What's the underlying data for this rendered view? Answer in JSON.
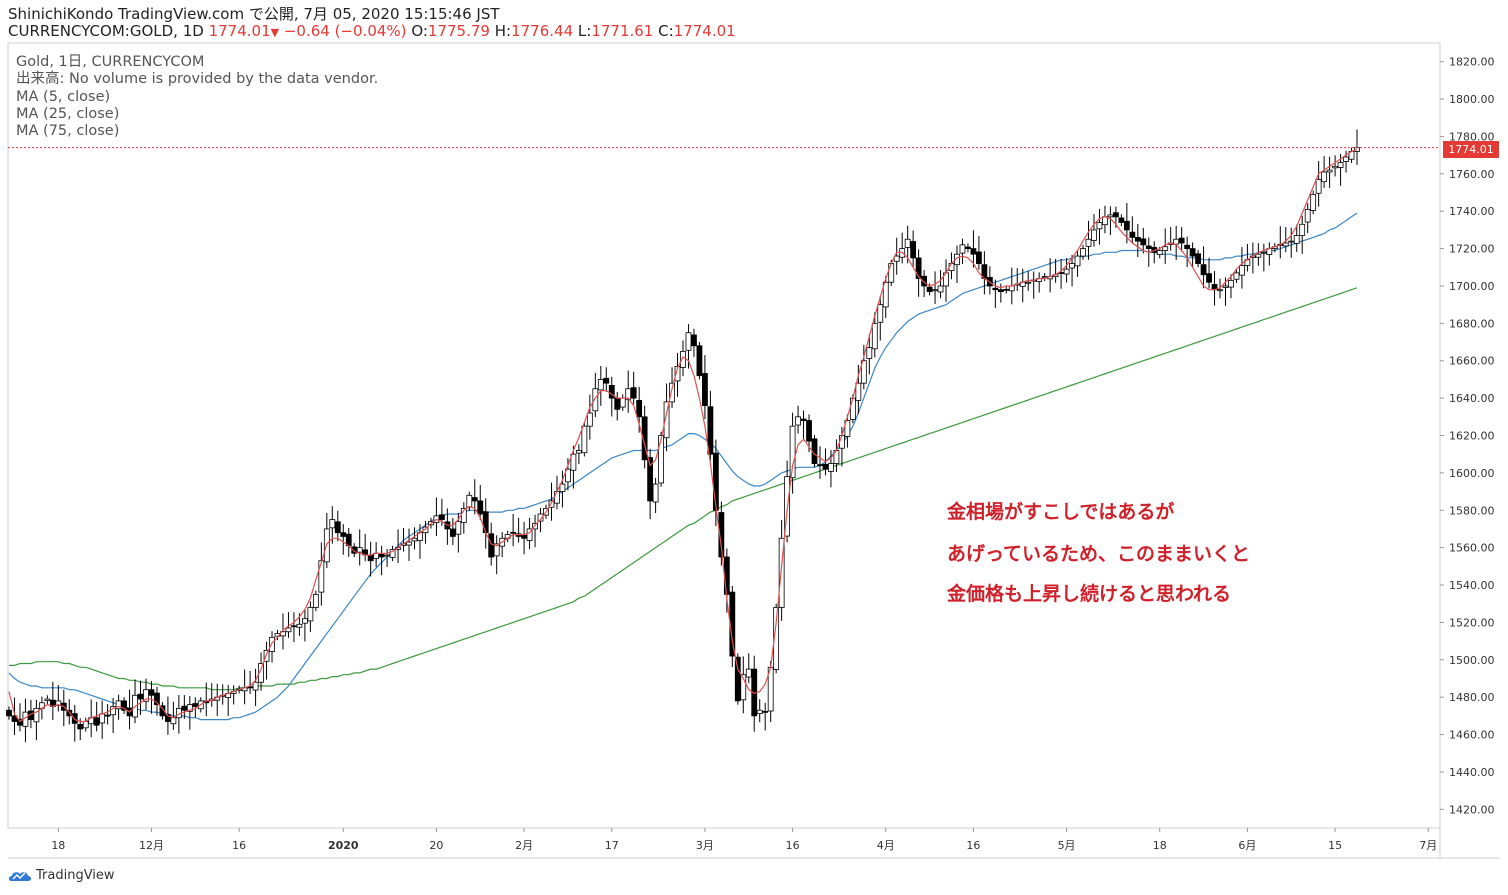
{
  "header": {
    "publisher_line": "ShinichiKondo TradingView.com で公開, 7月 05, 2020 15:15:46 JST",
    "symbol": "CURRENCYCOM:GOLD, 1D",
    "last": "1774.01",
    "change_arrow": "▼",
    "change": "−0.64 (−0.04%)",
    "o_label": "O:",
    "o_value": "1775.79",
    "h_label": "H:",
    "h_value": "1776.44",
    "l_label": "L:",
    "l_value": "1771.61",
    "c_label": "C:",
    "c_value": "1774.01"
  },
  "legend": {
    "title": "Gold, 1日, CURRENCYCOM",
    "volume": "出来高: No volume is provided by the data vendor.",
    "ma5": "MA (5, close)",
    "ma25": "MA (25, close)",
    "ma75": "MA (75, close)"
  },
  "annotation": {
    "line1": "金相場がすこしではあるが",
    "line2": "あげっているため、このままいくと",
    "line3": "金価格も上昇し続けると思われる"
  },
  "price_tag": "1774.01",
  "footer": {
    "brand": "TradingView",
    "logo_icon": "tradingview-cloud-icon"
  },
  "colors": {
    "up_body": "#ffffff",
    "down_body": "#000000",
    "ma5": "#e05050",
    "ma25": "#3a87c8",
    "ma75": "#3e9a3e",
    "last_price": "#e53935",
    "annotation": "#d0202a"
  },
  "chart_data": {
    "type": "candlestick",
    "ylim": [
      1410,
      1830
    ],
    "y_ticks": [
      "1420.00",
      "1440.00",
      "1460.00",
      "1480.00",
      "1500.00",
      "1520.00",
      "1540.00",
      "1560.00",
      "1580.00",
      "1600.00",
      "1620.00",
      "1640.00",
      "1660.00",
      "1680.00",
      "1700.00",
      "1720.00",
      "1740.00",
      "1760.00",
      "1780.00",
      "1800.00",
      "1820.00"
    ],
    "x_ticks": [
      {
        "label": "18",
        "i": 9
      },
      {
        "label": "12月",
        "i": 26
      },
      {
        "label": "16",
        "i": 42
      },
      {
        "label": "2020",
        "i": 61
      },
      {
        "label": "20",
        "i": 78
      },
      {
        "label": "2月",
        "i": 94
      },
      {
        "label": "17",
        "i": 110
      },
      {
        "label": "3月",
        "i": 127
      },
      {
        "label": "16",
        "i": 143
      },
      {
        "label": "4月",
        "i": 160
      },
      {
        "label": "16",
        "i": 176
      },
      {
        "label": "5月",
        "i": 193
      },
      {
        "label": "18",
        "i": 210
      },
      {
        "label": "6月",
        "i": 226
      },
      {
        "label": "15",
        "i": 242
      },
      {
        "label": "7月",
        "i": 259
      }
    ],
    "last_price": 1774.01,
    "closes": [
      1470,
      1467,
      1465,
      1472,
      1468,
      1474,
      1477,
      1479,
      1475,
      1478,
      1473,
      1470,
      1466,
      1463,
      1467,
      1469,
      1465,
      1471,
      1470,
      1475,
      1478,
      1473,
      1470,
      1481,
      1479,
      1484,
      1481,
      1476,
      1470,
      1467,
      1469,
      1474,
      1473,
      1476,
      1475,
      1478,
      1477,
      1479,
      1480,
      1481,
      1482,
      1483,
      1484,
      1485,
      1485,
      1488,
      1498,
      1505,
      1512,
      1514,
      1515,
      1517,
      1518,
      1519,
      1522,
      1528,
      1535,
      1553,
      1570,
      1575,
      1568,
      1566,
      1561,
      1557,
      1560,
      1556,
      1553,
      1557,
      1555,
      1556,
      1559,
      1560,
      1562,
      1563,
      1565,
      1568,
      1571,
      1574,
      1577,
      1575,
      1570,
      1566,
      1574,
      1581,
      1588,
      1585,
      1578,
      1568,
      1555,
      1562,
      1565,
      1567,
      1568,
      1566,
      1565,
      1570,
      1573,
      1578,
      1581,
      1585,
      1590,
      1594,
      1602,
      1610,
      1612,
      1625,
      1632,
      1645,
      1650,
      1648,
      1640,
      1634,
      1640,
      1645,
      1640,
      1630,
      1607,
      1585,
      1594,
      1620,
      1638,
      1648,
      1657,
      1665,
      1675,
      1668,
      1652,
      1636,
      1610,
      1580,
      1555,
      1535,
      1502,
      1478,
      1492,
      1495,
      1470,
      1473,
      1472,
      1496,
      1528,
      1565,
      1598,
      1625,
      1630,
      1628,
      1617,
      1605,
      1604,
      1602,
      1605,
      1612,
      1620,
      1628,
      1640,
      1648,
      1660,
      1667,
      1680,
      1690,
      1702,
      1712,
      1716,
      1720,
      1725,
      1715,
      1704,
      1700,
      1697,
      1698,
      1700,
      1707,
      1712,
      1717,
      1722,
      1720,
      1717,
      1712,
      1704,
      1700,
      1698,
      1697,
      1698,
      1700,
      1701,
      1702,
      1702,
      1703,
      1704,
      1705,
      1705,
      1706,
      1707,
      1709,
      1712,
      1716,
      1720,
      1725,
      1730,
      1734,
      1737,
      1738,
      1737,
      1734,
      1730,
      1726,
      1724,
      1722,
      1720,
      1718,
      1719,
      1721,
      1723,
      1725,
      1723,
      1720,
      1716,
      1712,
      1706,
      1702,
      1698,
      1698,
      1700,
      1703,
      1707,
      1711,
      1714,
      1716,
      1717,
      1718,
      1720,
      1721,
      1722,
      1723,
      1724,
      1727,
      1733,
      1741,
      1749,
      1757,
      1761,
      1762,
      1764,
      1766,
      1769,
      1772,
      1774
    ],
    "ma5": [
      1483,
      1471,
      1467,
      1469,
      1471,
      1472,
      1474,
      1476,
      1475,
      1476,
      1475,
      1472,
      1468,
      1467,
      1467,
      1469,
      1470,
      1471,
      1472,
      1474,
      1475,
      1474,
      1472,
      1475,
      1477,
      1479,
      1479,
      1477,
      1474,
      1470,
      1469,
      1471,
      1472,
      1473,
      1474,
      1476,
      1478,
      1478,
      1480,
      1481,
      1482,
      1483,
      1484,
      1485,
      1486,
      1489,
      1495,
      1503,
      1509,
      1512,
      1516,
      1518,
      1520,
      1523,
      1527,
      1533,
      1543,
      1552,
      1562,
      1565,
      1565,
      1563,
      1561,
      1558,
      1557,
      1556,
      1556,
      1557,
      1557,
      1557,
      1558,
      1560,
      1562,
      1564,
      1566,
      1568,
      1570,
      1573,
      1575,
      1574,
      1572,
      1572,
      1575,
      1580,
      1582,
      1581,
      1576,
      1568,
      1562,
      1561,
      1563,
      1565,
      1567,
      1567,
      1567,
      1568,
      1572,
      1575,
      1579,
      1584,
      1590,
      1596,
      1604,
      1612,
      1619,
      1627,
      1635,
      1640,
      1644,
      1644,
      1642,
      1640,
      1640,
      1640,
      1636,
      1626,
      1615,
      1604,
      1607,
      1618,
      1632,
      1645,
      1656,
      1662,
      1660,
      1652,
      1640,
      1625,
      1605,
      1582,
      1560,
      1533,
      1510,
      1495,
      1490,
      1484,
      1482,
      1483,
      1487,
      1496,
      1520,
      1550,
      1580,
      1604,
      1615,
      1618,
      1614,
      1610,
      1608,
      1606,
      1608,
      1612,
      1620,
      1630,
      1640,
      1652,
      1662,
      1673,
      1684,
      1694,
      1704,
      1712,
      1718,
      1718,
      1715,
      1710,
      1705,
      1702,
      1700,
      1701,
      1703,
      1707,
      1712,
      1715,
      1716,
      1715,
      1712,
      1707,
      1704,
      1702,
      1700,
      1699,
      1700,
      1700,
      1701,
      1702,
      1703,
      1703,
      1704,
      1704,
      1705,
      1706,
      1708,
      1711,
      1715,
      1719,
      1724,
      1729,
      1733,
      1736,
      1737,
      1736,
      1733,
      1729,
      1726,
      1723,
      1721,
      1719,
      1718,
      1719,
      1720,
      1722,
      1723,
      1722,
      1719,
      1715,
      1710,
      1705,
      1700,
      1698,
      1698,
      1699,
      1702,
      1705,
      1709,
      1712,
      1714,
      1716,
      1718,
      1719,
      1720,
      1721,
      1722,
      1724,
      1727,
      1732,
      1739,
      1746,
      1753,
      1760,
      1762,
      1764,
      1766,
      1768,
      1770,
      1772,
      1773
    ],
    "ma25": [
      1493,
      1490,
      1488,
      1487,
      1486,
      1486,
      1485,
      1485,
      1485,
      1485,
      1485,
      1484,
      1484,
      1483,
      1482,
      1481,
      1480,
      1479,
      1478,
      1477,
      1476,
      1475,
      1474,
      1474,
      1473,
      1473,
      1472,
      1472,
      1471,
      1471,
      1470,
      1470,
      1470,
      1469,
      1469,
      1468,
      1468,
      1468,
      1468,
      1468,
      1468,
      1469,
      1469,
      1470,
      1471,
      1472,
      1474,
      1476,
      1478,
      1480,
      1483,
      1486,
      1490,
      1494,
      1498,
      1502,
      1506,
      1510,
      1514,
      1518,
      1522,
      1526,
      1530,
      1534,
      1538,
      1542,
      1546,
      1549,
      1552,
      1555,
      1558,
      1561,
      1564,
      1566,
      1568,
      1570,
      1572,
      1574,
      1576,
      1577,
      1578,
      1578,
      1578,
      1579,
      1580,
      1580,
      1580,
      1579,
      1579,
      1579,
      1579,
      1580,
      1580,
      1581,
      1581,
      1582,
      1583,
      1584,
      1585,
      1586,
      1588,
      1590,
      1592,
      1594,
      1596,
      1598,
      1600,
      1602,
      1604,
      1606,
      1608,
      1609,
      1610,
      1611,
      1612,
      1612,
      1612,
      1612,
      1612,
      1613,
      1614,
      1615,
      1617,
      1619,
      1621,
      1621,
      1620,
      1618,
      1616,
      1613,
      1609,
      1605,
      1601,
      1598,
      1596,
      1594,
      1593,
      1593,
      1594,
      1596,
      1598,
      1600,
      1601,
      1602,
      1603,
      1603,
      1603,
      1603,
      1604,
      1606,
      1609,
      1612,
      1615,
      1620,
      1625,
      1632,
      1640,
      1648,
      1656,
      1662,
      1667,
      1671,
      1675,
      1678,
      1681,
      1683,
      1685,
      1686,
      1687,
      1688,
      1689,
      1690,
      1692,
      1694,
      1696,
      1697,
      1698,
      1699,
      1700,
      1701,
      1702,
      1703,
      1704,
      1705,
      1706,
      1707,
      1708,
      1709,
      1710,
      1711,
      1712,
      1713,
      1714,
      1714,
      1715,
      1715,
      1716,
      1716,
      1717,
      1717,
      1718,
      1718,
      1718,
      1719,
      1719,
      1719,
      1719,
      1719,
      1718,
      1718,
      1717,
      1717,
      1717,
      1716,
      1716,
      1715,
      1715,
      1715,
      1714,
      1714,
      1714,
      1714,
      1715,
      1715,
      1716,
      1716,
      1717,
      1717,
      1718,
      1718,
      1719,
      1719,
      1720,
      1721,
      1722,
      1723,
      1724,
      1725,
      1726,
      1727,
      1728,
      1730,
      1731,
      1733,
      1735,
      1737,
      1739
    ],
    "ma75": [
      1497,
      1497,
      1498,
      1498,
      1498,
      1499,
      1499,
      1499,
      1499,
      1499,
      1498,
      1498,
      1497,
      1496,
      1496,
      1495,
      1494,
      1493,
      1492,
      1491,
      1490,
      1490,
      1489,
      1489,
      1488,
      1488,
      1487,
      1487,
      1486,
      1486,
      1486,
      1485,
      1485,
      1485,
      1485,
      1485,
      1485,
      1484,
      1484,
      1484,
      1484,
      1484,
      1485,
      1485,
      1485,
      1486,
      1486,
      1486,
      1486,
      1487,
      1487,
      1487,
      1487,
      1488,
      1488,
      1489,
      1489,
      1490,
      1490,
      1491,
      1491,
      1492,
      1492,
      1493,
      1493,
      1494,
      1495,
      1495,
      1496,
      1497,
      1498,
      1499,
      1500,
      1501,
      1502,
      1503,
      1504,
      1505,
      1506,
      1507,
      1508,
      1509,
      1510,
      1511,
      1512,
      1513,
      1514,
      1515,
      1516,
      1517,
      1518,
      1519,
      1520,
      1521,
      1522,
      1523,
      1524,
      1525,
      1526,
      1527,
      1528,
      1529,
      1530,
      1531,
      1533,
      1534,
      1536,
      1538,
      1540,
      1542,
      1544,
      1546,
      1548,
      1550,
      1552,
      1554,
      1556,
      1558,
      1560,
      1562,
      1564,
      1566,
      1568,
      1570,
      1572,
      1573,
      1575,
      1577,
      1579,
      1580,
      1582,
      1583,
      1585,
      1586,
      1587,
      1588,
      1589,
      1590,
      1591,
      1592,
      1593,
      1594,
      1595,
      1596,
      1597,
      1598,
      1599,
      1600,
      1601,
      1602,
      1603,
      1604,
      1605,
      1606,
      1607,
      1608,
      1609,
      1610,
      1611,
      1612,
      1613,
      1614,
      1615,
      1616,
      1617,
      1618,
      1619,
      1620,
      1621,
      1622,
      1623,
      1624,
      1625,
      1626,
      1627,
      1628,
      1629,
      1630,
      1631,
      1632,
      1633,
      1634,
      1635,
      1636,
      1637,
      1638,
      1639,
      1640,
      1641,
      1642,
      1643,
      1644,
      1645,
      1646,
      1647,
      1648,
      1649,
      1650,
      1651,
      1652,
      1653,
      1654,
      1655,
      1656,
      1657,
      1658,
      1659,
      1660,
      1661,
      1662,
      1663,
      1664,
      1665,
      1666,
      1667,
      1668,
      1669,
      1670,
      1671,
      1672,
      1673,
      1674,
      1675,
      1676,
      1677,
      1678,
      1679,
      1680,
      1681,
      1682,
      1683,
      1684,
      1685,
      1686,
      1687,
      1688,
      1689,
      1690,
      1691,
      1692,
      1693,
      1694,
      1695,
      1696,
      1697,
      1698,
      1699
    ]
  }
}
